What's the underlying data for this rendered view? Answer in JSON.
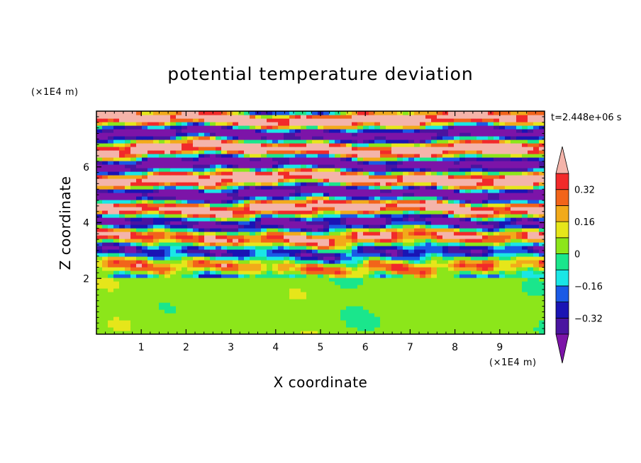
{
  "chart_data": {
    "type": "heatmap",
    "title": "potential temperature deviation",
    "xlabel": "X coordinate",
    "ylabel": "Z coordinate",
    "x_unit": "(×1E4 m)",
    "y_unit": "(×1E4 m)",
    "time_label": "t=2.448e+06 s",
    "xlim": [
      0,
      10
    ],
    "ylim": [
      0,
      8
    ],
    "x_ticks": [
      1,
      2,
      3,
      4,
      5,
      6,
      7,
      8,
      9
    ],
    "x_tick_labels": [
      "1",
      "2",
      "3",
      "4",
      "5",
      "6",
      "7",
      "8",
      "9"
    ],
    "y_ticks": [
      2,
      4,
      6
    ],
    "y_tick_labels": [
      "2",
      "4",
      "6"
    ],
    "colorbar": {
      "levels": [
        -0.4,
        -0.32,
        -0.24,
        -0.16,
        -0.08,
        0,
        0.08,
        0.16,
        0.24,
        0.32,
        0.4
      ],
      "colors": [
        "#7c14a8",
        "#4a14a0",
        "#1a14b4",
        "#1a5ae6",
        "#1ae6e6",
        "#1ae68c",
        "#8ce61a",
        "#e6e61a",
        "#f2aa1a",
        "#f2641a",
        "#f22a2a",
        "#f4b4aa"
      ],
      "tick_values": [
        -0.32,
        -0.16,
        0,
        0.16,
        0.32
      ],
      "tick_labels": [
        "−0.32",
        "−0.16",
        "0",
        "0.16",
        "0.32"
      ],
      "extend": "both"
    },
    "layers": [
      {
        "z_range": [
          0,
          2
        ],
        "description": "lower layer: values near 0 to 0.08"
      },
      {
        "z_range": [
          2,
          8
        ],
        "description": "upper layer: banded values from below -0.4 to above 0.4"
      }
    ]
  }
}
